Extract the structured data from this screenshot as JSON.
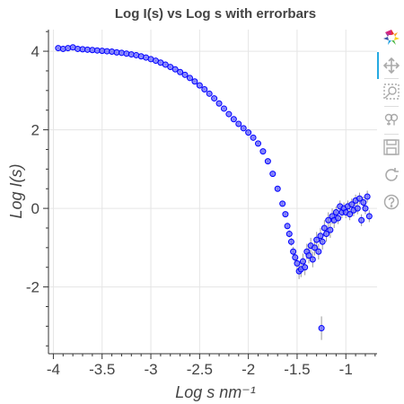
{
  "chart_data": {
    "type": "scatter",
    "title": "Log I(s) vs Log s with errorbars",
    "xlabel": "Log s nm⁻¹",
    "ylabel": "Log I(s)",
    "xlim": [
      -4.05,
      -0.68
    ],
    "ylim": [
      -3.7,
      4.55
    ],
    "x_ticks": [
      -4,
      -3.5,
      -3,
      -2.5,
      -2,
      -1.5,
      -1
    ],
    "x_tick_labels": [
      "-4",
      "-3.5",
      "-3",
      "-2.5",
      "-2",
      "-1.5",
      "-1"
    ],
    "y_ticks": [
      4,
      2,
      0,
      -2
    ],
    "y_tick_labels": [
      "4",
      "2",
      "0",
      "-2"
    ],
    "grid": true,
    "legend": "none",
    "series": [
      {
        "marker": "circle",
        "fill_color": "#6666ff",
        "line_color": "#0000ff",
        "errorbar_color": "#999999",
        "x": [
          -3.95,
          -3.9,
          -3.85,
          -3.8,
          -3.75,
          -3.7,
          -3.65,
          -3.6,
          -3.55,
          -3.5,
          -3.45,
          -3.4,
          -3.35,
          -3.3,
          -3.25,
          -3.2,
          -3.15,
          -3.1,
          -3.05,
          -3.0,
          -2.95,
          -2.9,
          -2.85,
          -2.8,
          -2.75,
          -2.7,
          -2.65,
          -2.6,
          -2.55,
          -2.5,
          -2.45,
          -2.4,
          -2.35,
          -2.3,
          -2.25,
          -2.2,
          -2.15,
          -2.1,
          -2.05,
          -2.0,
          -1.95,
          -1.9,
          -1.85,
          -1.8,
          -1.75,
          -1.7,
          -1.65,
          -1.62,
          -1.6,
          -1.58,
          -1.56,
          -1.54,
          -1.52,
          -1.5,
          -1.48,
          -1.46,
          -1.44,
          -1.42,
          -1.4,
          -1.38,
          -1.36,
          -1.34,
          -1.32,
          -1.3,
          -1.28,
          -1.26,
          -1.25,
          -1.24,
          -1.22,
          -1.2,
          -1.18,
          -1.16,
          -1.14,
          -1.12,
          -1.1,
          -1.08,
          -1.06,
          -1.04,
          -1.02,
          -1.0,
          -0.98,
          -0.96,
          -0.94,
          -0.92,
          -0.9,
          -0.88,
          -0.86,
          -0.84,
          -0.82,
          -0.8,
          -0.78,
          -0.76
        ],
        "y": [
          4.08,
          4.06,
          4.08,
          4.1,
          4.06,
          4.05,
          4.04,
          4.03,
          4.02,
          4.01,
          4.0,
          3.99,
          3.97,
          3.96,
          3.94,
          3.92,
          3.9,
          3.87,
          3.84,
          3.8,
          3.76,
          3.71,
          3.66,
          3.6,
          3.54,
          3.47,
          3.4,
          3.32,
          3.23,
          3.13,
          3.03,
          2.92,
          2.8,
          2.67,
          2.54,
          2.4,
          2.27,
          2.15,
          2.04,
          1.93,
          1.8,
          1.65,
          1.45,
          1.2,
          0.88,
          0.5,
          0.12,
          -0.15,
          -0.45,
          -0.65,
          -0.85,
          -1.1,
          -1.25,
          -1.4,
          -1.6,
          -1.55,
          -1.35,
          -1.5,
          -1.1,
          -1.2,
          -0.95,
          -1.3,
          -1.0,
          -0.8,
          -1.1,
          -0.7,
          -3.05,
          -0.85,
          -0.5,
          -0.65,
          -0.3,
          -0.55,
          -0.2,
          -0.3,
          -0.1,
          -0.25,
          0.05,
          -0.1,
          0.0,
          -0.1,
          0.05,
          -0.15,
          0.1,
          -0.05,
          0.2,
          0.0,
          0.25,
          -0.3,
          0.15,
          0.0,
          0.3,
          -0.2
        ],
        "yerr": [
          0.02,
          0.02,
          0.02,
          0.02,
          0.02,
          0.02,
          0.02,
          0.02,
          0.02,
          0.02,
          0.02,
          0.02,
          0.02,
          0.02,
          0.02,
          0.02,
          0.02,
          0.02,
          0.02,
          0.02,
          0.02,
          0.02,
          0.02,
          0.02,
          0.02,
          0.02,
          0.02,
          0.02,
          0.02,
          0.02,
          0.02,
          0.02,
          0.02,
          0.02,
          0.02,
          0.02,
          0.02,
          0.03,
          0.03,
          0.03,
          0.03,
          0.04,
          0.04,
          0.05,
          0.05,
          0.06,
          0.06,
          0.07,
          0.08,
          0.09,
          0.1,
          0.12,
          0.14,
          0.15,
          0.2,
          0.2,
          0.2,
          0.2,
          0.2,
          0.2,
          0.2,
          0.2,
          0.2,
          0.2,
          0.2,
          0.2,
          0.3,
          0.2,
          0.2,
          0.2,
          0.2,
          0.2,
          0.2,
          0.2,
          0.15,
          0.15,
          0.15,
          0.15,
          0.15,
          0.15,
          0.15,
          0.15,
          0.15,
          0.15,
          0.15,
          0.15,
          0.15,
          0.15,
          0.15,
          0.15,
          0.15,
          0.15
        ]
      }
    ]
  },
  "toolbar": {
    "items": [
      {
        "name": "bokeh-logo-icon",
        "icon": "bokeh-logo"
      },
      {
        "name": "pan-icon",
        "icon": "pan",
        "active": true
      },
      {
        "name": "box-zoom-icon",
        "icon": "box-zoom"
      },
      {
        "name": "wheel-zoom-icon",
        "icon": "wheel-zoom"
      },
      {
        "name": "save-icon",
        "icon": "save"
      },
      {
        "name": "reset-icon",
        "icon": "reset"
      },
      {
        "name": "help-icon",
        "icon": "help"
      }
    ],
    "accent_color": "#26aae1",
    "icon_color": "#aaaaaa"
  }
}
